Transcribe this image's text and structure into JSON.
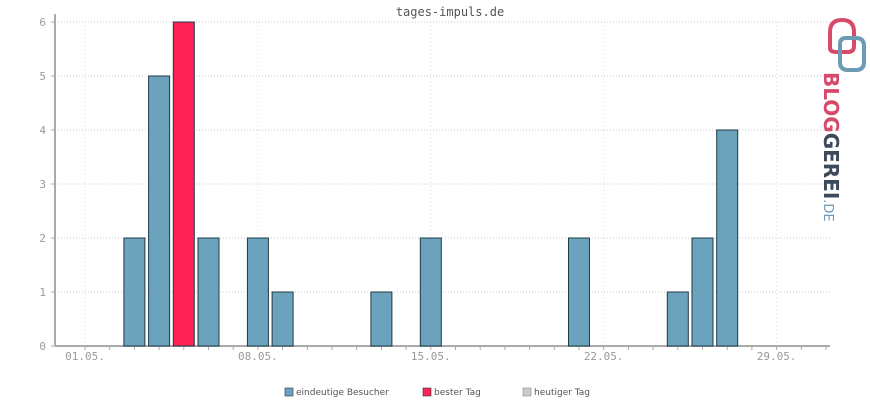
{
  "chart_data": {
    "type": "bar",
    "title": "tages-impuls.de",
    "xlabel": "",
    "ylabel": "",
    "ylim": [
      0,
      6
    ],
    "yticks": [
      0,
      1,
      2,
      3,
      4,
      5,
      6
    ],
    "grid": true,
    "legend_position": "bottom",
    "days": [
      1,
      2,
      3,
      4,
      5,
      6,
      7,
      8,
      9,
      10,
      11,
      12,
      13,
      14,
      15,
      16,
      17,
      18,
      19,
      20,
      21,
      22,
      23,
      24,
      25,
      26,
      27,
      28,
      29,
      30,
      31
    ],
    "xtick_labels": [
      {
        "day": 1,
        "label": "01.05."
      },
      {
        "day": 8,
        "label": "08.05."
      },
      {
        "day": 15,
        "label": "15.05."
      },
      {
        "day": 22,
        "label": "22.05."
      },
      {
        "day": 29,
        "label": "29.05."
      }
    ],
    "series": [
      {
        "name": "eindeutige Besucher",
        "color": "#6ca3bc",
        "values": [
          0,
          0,
          2,
          5,
          6,
          2,
          0,
          2,
          1,
          0,
          0,
          0,
          1,
          0,
          2,
          0,
          0,
          0,
          0,
          0,
          2,
          0,
          0,
          0,
          1,
          2,
          4,
          0,
          0,
          0,
          0
        ]
      }
    ],
    "best_day": 5,
    "legend": [
      {
        "label": "eindeutige Besucher",
        "color": "#6ca3bc"
      },
      {
        "label": "bester Tag",
        "color": "#ff2255"
      },
      {
        "label": "heutiger Tag",
        "color": "#cccccc"
      }
    ]
  },
  "logo": {
    "name": "BLOGGEREI",
    "suffix": ".DE",
    "accent_color": "#d84a6a",
    "dark_color": "#3d4a5c",
    "blue_color": "#6c9bb4"
  }
}
